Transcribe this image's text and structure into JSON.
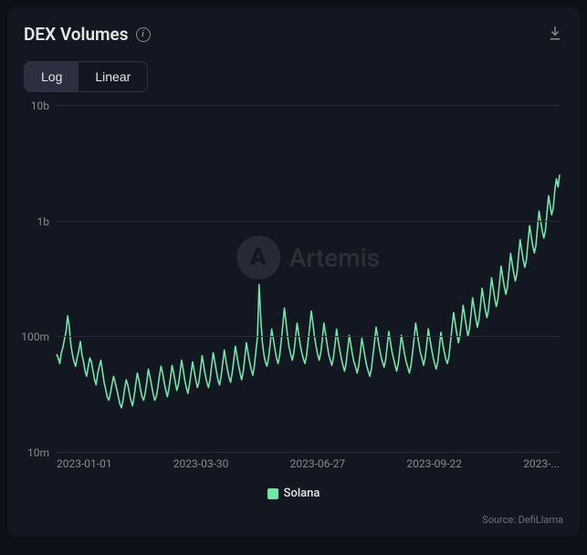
{
  "title": "DEX Volumes",
  "watermark": "Artemis",
  "source": "Source: DefiLlama",
  "toggle": {
    "log": "Log",
    "linear": "Linear",
    "active": "log"
  },
  "legend": {
    "label": "Solana",
    "color": "#6ee7a7"
  },
  "chart": {
    "type": "line",
    "yscale": "log",
    "ylim": [
      10000000,
      10000000000
    ],
    "yticks": [
      {
        "v": 10000000,
        "label": "10m"
      },
      {
        "v": 100000000,
        "label": "100m"
      },
      {
        "v": 1000000000,
        "label": "1b"
      },
      {
        "v": 10000000000,
        "label": "10b"
      }
    ],
    "xticks": [
      "2023-01-01",
      "2023-03-30",
      "2023-06-27",
      "2023-09-22",
      "2023-..."
    ],
    "background_color": "#131722",
    "grid_color": "#262b36",
    "line_color": "#6ee7a7",
    "line_width": 1.6,
    "label_color": "#8b8b8b",
    "label_fontsize": 12,
    "values": [
      70,
      65,
      58,
      72,
      80,
      95,
      110,
      150,
      120,
      85,
      70,
      60,
      55,
      65,
      75,
      90,
      70,
      60,
      50,
      45,
      55,
      65,
      60,
      50,
      42,
      38,
      48,
      55,
      62,
      50,
      40,
      35,
      30,
      28,
      32,
      38,
      45,
      40,
      35,
      30,
      26,
      24,
      28,
      35,
      42,
      38,
      32,
      28,
      25,
      30,
      38,
      48,
      42,
      35,
      30,
      28,
      32,
      40,
      52,
      45,
      38,
      32,
      28,
      30,
      36,
      45,
      55,
      48,
      40,
      34,
      30,
      35,
      44,
      56,
      48,
      40,
      34,
      38,
      48,
      62,
      52,
      42,
      36,
      32,
      38,
      48,
      60,
      50,
      42,
      36,
      40,
      52,
      68,
      56,
      46,
      40,
      36,
      42,
      55,
      72,
      60,
      50,
      42,
      38,
      45,
      58,
      76,
      62,
      52,
      44,
      40,
      48,
      62,
      82,
      68,
      56,
      48,
      42,
      50,
      66,
      88,
      72,
      60,
      52,
      46,
      55,
      74,
      100,
      280,
      150,
      90,
      70,
      60,
      55,
      65,
      85,
      115,
      95,
      78,
      65,
      58,
      68,
      90,
      125,
      175,
      135,
      100,
      80,
      70,
      62,
      72,
      95,
      130,
      105,
      85,
      72,
      64,
      58,
      68,
      90,
      120,
      165,
      130,
      100,
      82,
      70,
      62,
      72,
      95,
      130,
      105,
      85,
      70,
      62,
      56,
      65,
      85,
      115,
      92,
      76,
      64,
      56,
      50,
      58,
      76,
      102,
      85,
      70,
      60,
      54,
      48,
      55,
      72,
      96,
      80,
      66,
      56,
      50,
      45,
      52,
      68,
      90,
      120,
      98,
      80,
      68,
      60,
      54,
      62,
      82,
      110,
      90,
      74,
      64,
      56,
      50,
      58,
      76,
      102,
      84,
      70,
      60,
      54,
      48,
      55,
      72,
      96,
      130,
      105,
      86,
      72,
      64,
      56,
      65,
      86,
      116,
      95,
      78,
      66,
      58,
      52,
      60,
      80,
      108,
      88,
      74,
      64,
      58,
      66,
      88,
      120,
      160,
      130,
      105,
      88,
      100,
      135,
      185,
      150,
      122,
      100,
      115,
      155,
      215,
      175,
      142,
      120,
      138,
      188,
      260,
      210,
      170,
      145,
      168,
      230,
      320,
      260,
      210,
      180,
      210,
      290,
      405,
      330,
      270,
      230,
      265,
      370,
      520,
      425,
      350,
      300,
      345,
      485,
      685,
      560,
      460,
      395,
      455,
      640,
      905,
      740,
      610,
      525,
      605,
      855,
      1210,
      995,
      820,
      705,
      815,
      1150,
      1640,
      1350,
      1120,
      1300,
      1850,
      2300,
      1950,
      2500
    ]
  }
}
